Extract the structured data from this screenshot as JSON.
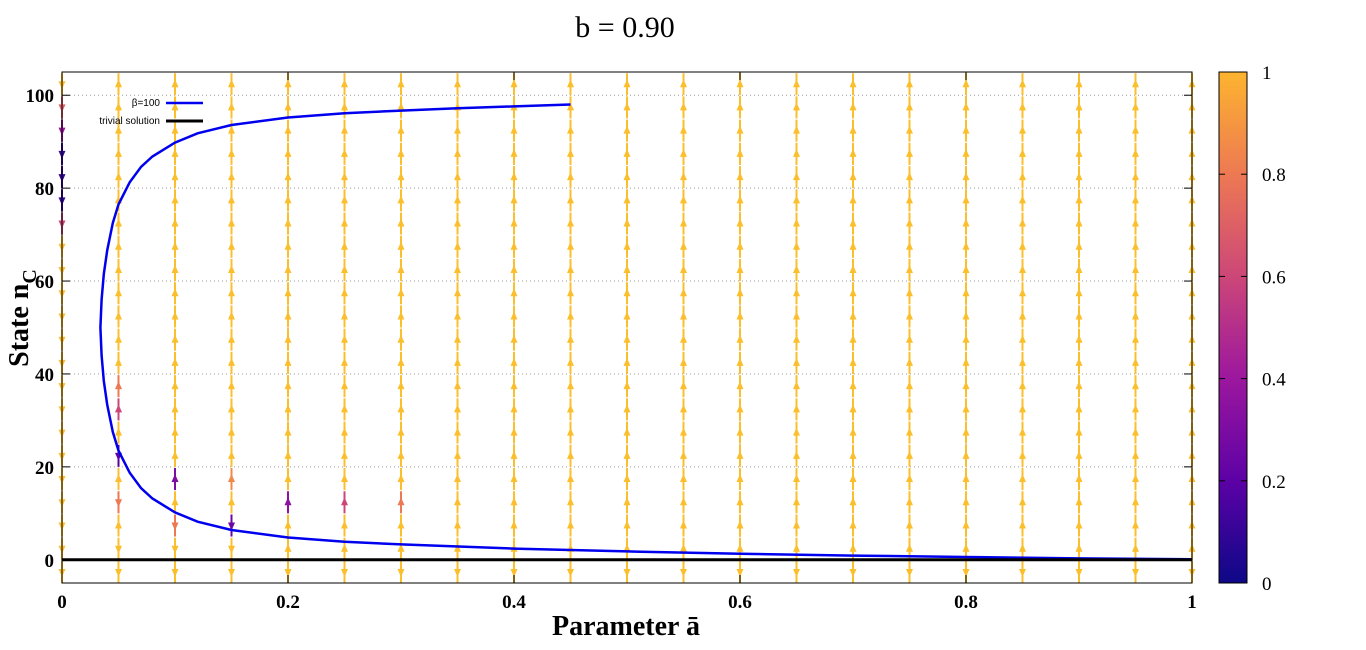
{
  "chart_data": {
    "type": "line",
    "title": "b = 0.90",
    "xlabel": "Parameter ā",
    "ylabel_main": "State n",
    "ylabel_sub": "C",
    "xlim": [
      0,
      1
    ],
    "ylim": [
      -5,
      105
    ],
    "x_ticks": [
      0,
      0.2,
      0.4,
      0.6,
      0.8,
      1
    ],
    "x_tick_labels": [
      "0",
      "0.2",
      "0.4",
      "0.6",
      "0.8",
      "1"
    ],
    "y_ticks": [
      0,
      20,
      40,
      60,
      80,
      100
    ],
    "y_tick_labels": [
      "0",
      "20",
      "40",
      "60",
      "80",
      "100"
    ],
    "grid": true,
    "legend_position": "top-left",
    "series": [
      {
        "name": "β=100",
        "color": "#0000ee",
        "x": [
          0.45,
          0.4,
          0.35,
          0.3,
          0.25,
          0.2,
          0.15,
          0.12,
          0.1,
          0.08,
          0.07,
          0.06,
          0.05,
          0.045,
          0.04,
          0.037,
          0.035,
          0.034,
          0.035,
          0.037,
          0.04,
          0.045,
          0.05,
          0.06,
          0.07,
          0.08,
          0.1,
          0.12,
          0.15,
          0.2,
          0.25,
          0.3,
          0.4,
          0.5,
          0.6,
          0.7,
          0.8,
          0.9,
          1.0
        ],
        "y": [
          98,
          97.6,
          97.2,
          96.7,
          96.1,
          95.2,
          93.6,
          91.8,
          89.8,
          86.8,
          84.6,
          81.3,
          76.5,
          72.5,
          66.6,
          61.5,
          56,
          50,
          44,
          38.5,
          33.4,
          27.5,
          23.5,
          18.7,
          15.4,
          13.2,
          10.2,
          8.2,
          6.4,
          4.8,
          3.9,
          3.3,
          2.4,
          1.8,
          1.3,
          0.9,
          0.6,
          0.3,
          0.1
        ]
      },
      {
        "name": "trivial solution",
        "color": "#000000",
        "x": [
          0,
          1
        ],
        "y": [
          0,
          0
        ]
      }
    ],
    "vector_field": {
      "x_columns": [
        0,
        0.05,
        0.1,
        0.15,
        0.2,
        0.25,
        0.3,
        0.35,
        0.4,
        0.45,
        0.5,
        0.55,
        0.6,
        0.65,
        0.7,
        0.75,
        0.8,
        0.85,
        0.9,
        0.95,
        1.0
      ],
      "y_range": [
        -5,
        100
      ],
      "arrow_spacing": 5,
      "default_color": "#fbbf2d",
      "highlights": [
        {
          "x": 0,
          "y": 90,
          "dir": "down",
          "value": 0.4
        },
        {
          "x": 0,
          "y": 85,
          "dir": "down",
          "value": 0.1
        },
        {
          "x": 0,
          "y": 80,
          "dir": "down",
          "value": 0.1
        },
        {
          "x": 0,
          "y": 75,
          "dir": "down",
          "value": 0.1
        },
        {
          "x": 0,
          "y": 70,
          "dir": "down",
          "value": 0.6
        },
        {
          "x": 0,
          "y": 95,
          "dir": "down",
          "value": 0.7
        },
        {
          "x": 0.05,
          "y": 35,
          "dir": "up",
          "value": 0.8
        },
        {
          "x": 0.05,
          "y": 30,
          "dir": "up",
          "value": 0.6
        },
        {
          "x": 0.05,
          "y": 20,
          "dir": "down",
          "value": 0.2
        },
        {
          "x": 0.05,
          "y": 10,
          "dir": "down",
          "value": 0.8
        },
        {
          "x": 0.1,
          "y": 15,
          "dir": "up",
          "value": 0.3
        },
        {
          "x": 0.1,
          "y": 5,
          "dir": "down",
          "value": 0.8
        },
        {
          "x": 0.15,
          "y": 15,
          "dir": "up",
          "value": 0.85
        },
        {
          "x": 0.15,
          "y": 5,
          "dir": "down",
          "value": 0.25
        },
        {
          "x": 0.2,
          "y": 10,
          "dir": "up",
          "value": 0.35
        },
        {
          "x": 0.25,
          "y": 10,
          "dir": "up",
          "value": 0.6
        },
        {
          "x": 0.3,
          "y": 10,
          "dir": "up",
          "value": 0.8
        }
      ]
    },
    "colorbar": {
      "range": [
        0,
        1
      ],
      "ticks": [
        0,
        0.2,
        0.4,
        0.6,
        0.8,
        1
      ],
      "tick_labels": [
        "0",
        "0.2",
        "0.4",
        "0.6",
        "0.8",
        "1"
      ],
      "colormap": [
        "#0d0887",
        "#5c01a6",
        "#9c179e",
        "#cc4778",
        "#ed7953",
        "#fdb42f",
        "#f0f921"
      ]
    }
  }
}
